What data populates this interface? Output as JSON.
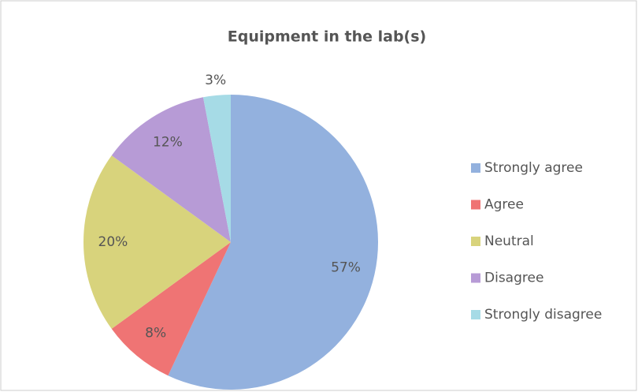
{
  "chart_data": {
    "type": "pie",
    "title": "Equipment in the lab(s)",
    "categories": [
      "Strongly agree",
      "Agree",
      "Neutral",
      "Disagree",
      "Strongly disagree"
    ],
    "values": [
      57,
      8,
      20,
      12,
      3
    ],
    "value_labels": [
      "57%",
      "8%",
      "20%",
      "12%",
      "3%"
    ],
    "colors": [
      "#93b1de",
      "#ef7474",
      "#d8d37c",
      "#b79bd6",
      "#a6dbe6"
    ],
    "legend": "right"
  }
}
